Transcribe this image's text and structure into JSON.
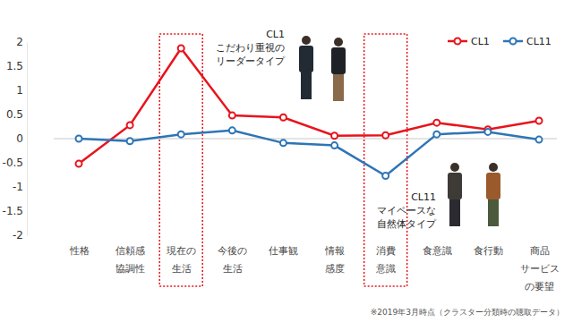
{
  "chart_data": {
    "type": "line",
    "categories": [
      "性格",
      "信頼感\n協調性",
      "現在の\n生活",
      "今後の\n生活",
      "仕事観",
      "情報\n感度",
      "消費\n意識",
      "食意識",
      "食行動",
      "商品\nサービス\nの要望"
    ],
    "series": [
      {
        "name": "CL1",
        "color": "#e8141c",
        "marker": "circle",
        "values": [
          -0.52,
          0.28,
          1.87,
          0.48,
          0.44,
          0.06,
          0.07,
          0.33,
          0.19,
          0.37
        ]
      },
      {
        "name": "CL11",
        "color": "#2e75b6",
        "marker": "circle",
        "values": [
          0.0,
          -0.05,
          0.09,
          0.17,
          -0.09,
          -0.14,
          -0.77,
          0.09,
          0.14,
          -0.02
        ]
      }
    ],
    "ylim": [
      -2,
      2
    ],
    "yticks": [
      -2,
      -1.5,
      -1,
      -0.5,
      0,
      0.5,
      1,
      1.5,
      2
    ],
    "grid": false,
    "legend": "upper right",
    "annotations": [
      "CL1\nこだわり重視の\nリーダータイプ",
      "CL11\nマイペースな\n自然体タイプ",
      "※2019年3月時点（クラスター分類時の聴取データ）"
    ]
  }
}
